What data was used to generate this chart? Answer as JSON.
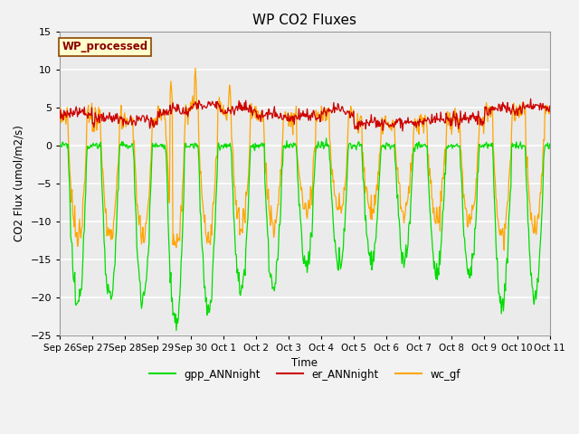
{
  "title": "WP CO2 Fluxes",
  "ylabel": "CO2 Flux (umol/m2/s)",
  "xlabel": "Time",
  "ylim": [
    -25,
    15
  ],
  "annotation": "WP_processed",
  "annotation_color": "#8B0000",
  "annotation_bg": "#FFFFCC",
  "annotation_border": "#8B4500",
  "legend_labels": [
    "gpp_ANNnight",
    "er_ANNnight",
    "wc_gf"
  ],
  "legend_colors": [
    "#00DD00",
    "#CC0000",
    "#FFA500"
  ],
  "line_colors": {
    "gpp": "#00DD00",
    "er": "#CC0000",
    "wc": "#FFA500"
  },
  "background_color": "#EBEBEB",
  "grid_color": "#FFFFFF",
  "x_tick_labels": [
    "Sep 26",
    "Sep 27",
    "Sep 28",
    "Sep 29",
    "Sep 30",
    "Oct 1",
    "Oct 2",
    "Oct 3",
    "Oct 4",
    "Oct 5",
    "Oct 6",
    "Oct 7",
    "Oct 8",
    "Oct 9",
    "Oct 10",
    "Oct 11"
  ],
  "yticks": [
    -25,
    -20,
    -15,
    -10,
    -5,
    0,
    5,
    10,
    15
  ],
  "figsize": [
    6.4,
    4.8
  ],
  "dpi": 100
}
